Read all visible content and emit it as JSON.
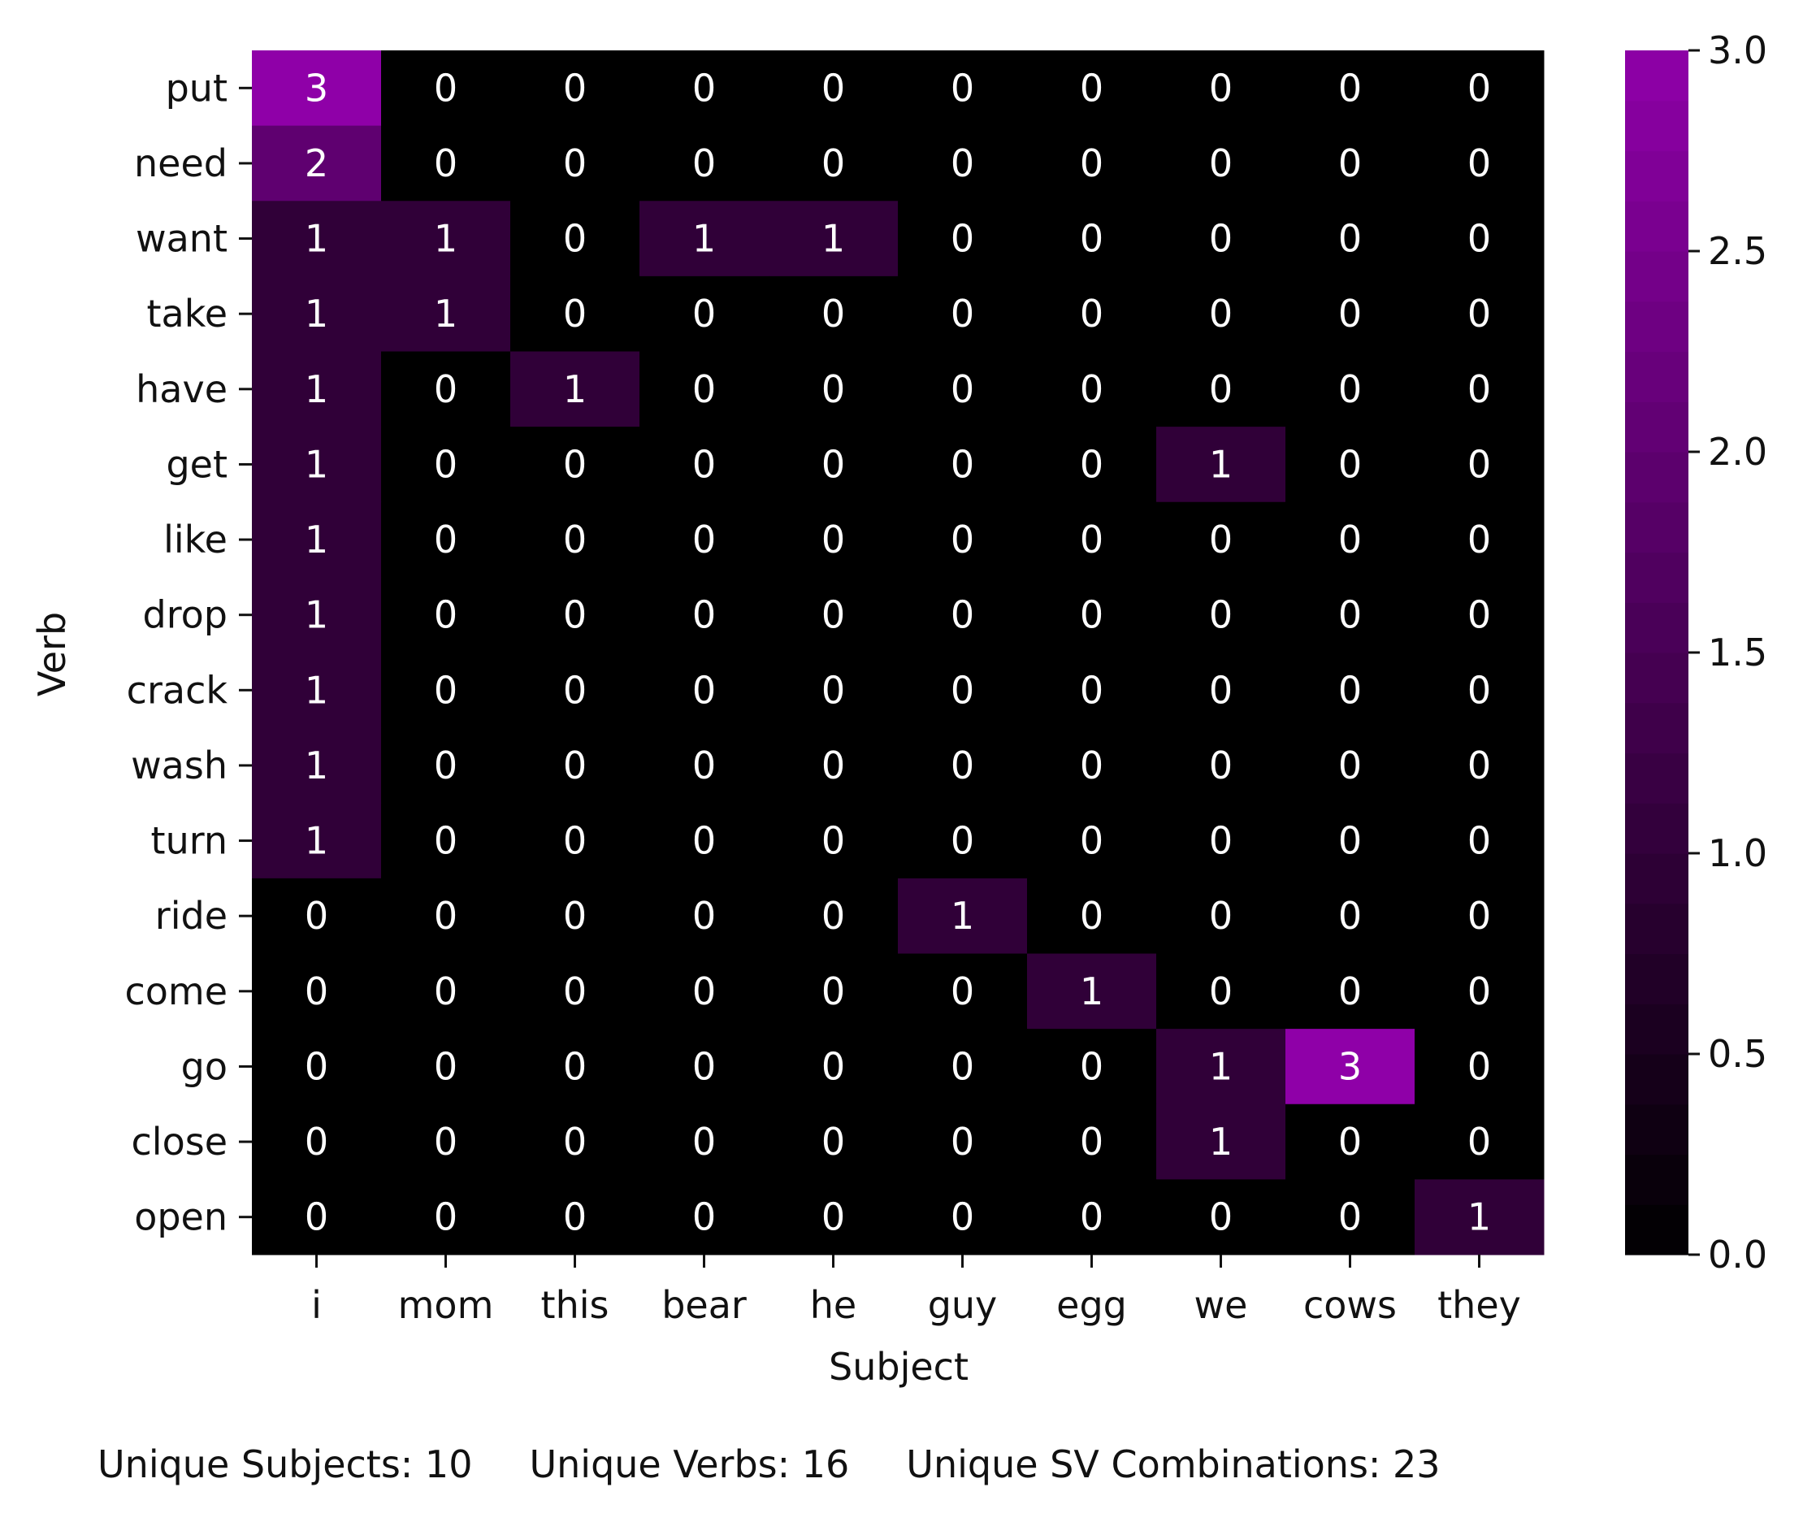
{
  "chart_data": {
    "type": "heatmap",
    "title": "",
    "xlabel": "Subject",
    "ylabel": "Verb",
    "x_categories": [
      "i",
      "mom",
      "this",
      "bear",
      "he",
      "guy",
      "egg",
      "we",
      "cows",
      "they"
    ],
    "y_categories": [
      "put",
      "need",
      "want",
      "take",
      "have",
      "get",
      "like",
      "drop",
      "crack",
      "wash",
      "turn",
      "ride",
      "come",
      "go",
      "close",
      "open"
    ],
    "values": [
      [
        3,
        0,
        0,
        0,
        0,
        0,
        0,
        0,
        0,
        0
      ],
      [
        2,
        0,
        0,
        0,
        0,
        0,
        0,
        0,
        0,
        0
      ],
      [
        1,
        1,
        0,
        1,
        1,
        0,
        0,
        0,
        0,
        0
      ],
      [
        1,
        1,
        0,
        0,
        0,
        0,
        0,
        0,
        0,
        0
      ],
      [
        1,
        0,
        1,
        0,
        0,
        0,
        0,
        0,
        0,
        0
      ],
      [
        1,
        0,
        0,
        0,
        0,
        0,
        0,
        1,
        0,
        0
      ],
      [
        1,
        0,
        0,
        0,
        0,
        0,
        0,
        0,
        0,
        0
      ],
      [
        1,
        0,
        0,
        0,
        0,
        0,
        0,
        0,
        0,
        0
      ],
      [
        1,
        0,
        0,
        0,
        0,
        0,
        0,
        0,
        0,
        0
      ],
      [
        1,
        0,
        0,
        0,
        0,
        0,
        0,
        0,
        0,
        0
      ],
      [
        1,
        0,
        0,
        0,
        0,
        0,
        0,
        0,
        0,
        0
      ],
      [
        0,
        0,
        0,
        0,
        0,
        1,
        0,
        0,
        0,
        0
      ],
      [
        0,
        0,
        0,
        0,
        0,
        0,
        1,
        0,
        0,
        0
      ],
      [
        0,
        0,
        0,
        0,
        0,
        0,
        0,
        1,
        3,
        0
      ],
      [
        0,
        0,
        0,
        0,
        0,
        0,
        0,
        1,
        0,
        0
      ],
      [
        0,
        0,
        0,
        0,
        0,
        0,
        0,
        0,
        0,
        1
      ]
    ],
    "colorbar": {
      "range": [
        0,
        3
      ],
      "ticks": [
        "0.0",
        "0.5",
        "1.0",
        "1.5",
        "2.0",
        "2.5",
        "3.0"
      ],
      "low_color": "#000000",
      "high_color": "#8f00a8"
    }
  },
  "stats": {
    "subjects": "Unique Subjects: 10",
    "verbs": "Unique Verbs: 16",
    "combinations": "Unique SV Combinations: 23"
  }
}
